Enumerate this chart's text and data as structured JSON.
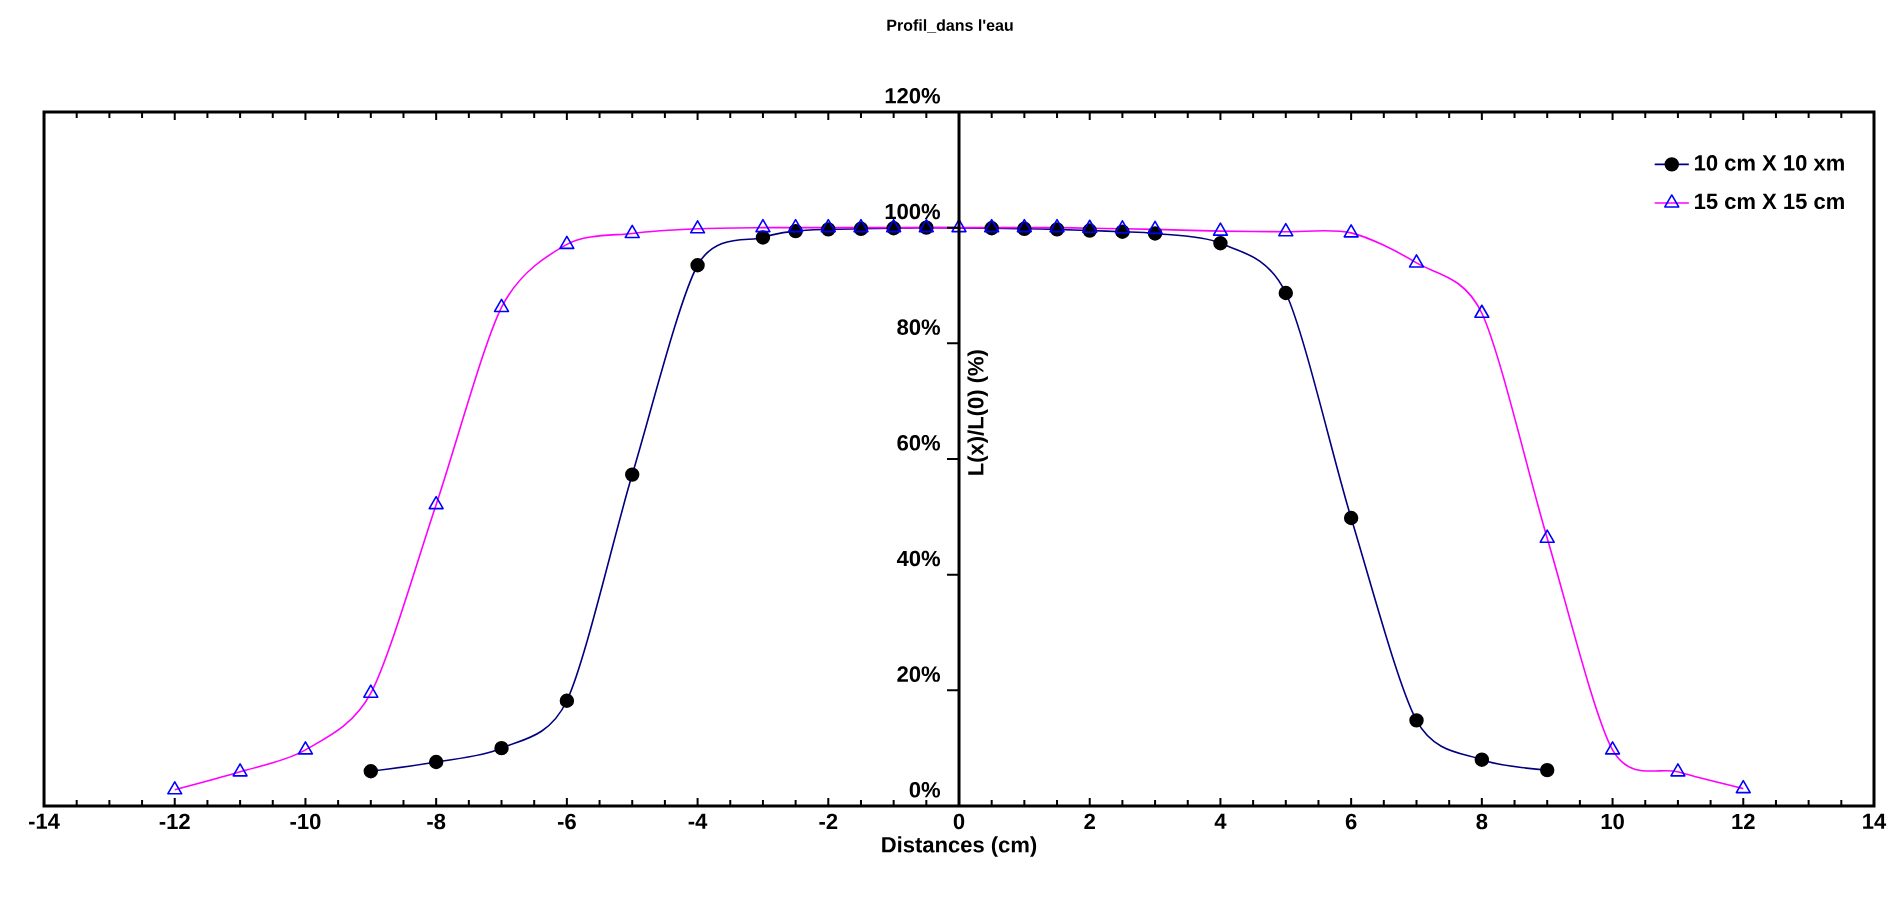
{
  "chart_data": {
    "type": "line",
    "title": "Profil_dans l'eau",
    "xlabel": "Distances  (cm)",
    "ylabel": "L(x)/L(0) (%)",
    "xlim": [
      -14,
      14
    ],
    "xticks": [
      -14,
      -12,
      -10,
      -8,
      -6,
      -4,
      -2,
      0,
      2,
      4,
      6,
      8,
      10,
      12,
      14
    ],
    "ylim": [
      0,
      120
    ],
    "yticks": [
      {
        "value": 0,
        "label": "0%"
      },
      {
        "value": 20,
        "label": "20%"
      },
      {
        "value": 40,
        "label": "40%"
      },
      {
        "value": 60,
        "label": "60%"
      },
      {
        "value": 80,
        "label": "80%"
      },
      {
        "value": 100,
        "label": "100%"
      },
      {
        "value": 120,
        "label": "120%"
      }
    ],
    "legend": "top right",
    "grid": false,
    "series": [
      {
        "name": "10 cm X 10 xm",
        "color": "#000080",
        "marker": "circle",
        "x": [
          -9,
          -8,
          -7,
          -6,
          -5,
          -4,
          -3,
          -2.5,
          -2,
          -1.5,
          -1,
          -0.5,
          0,
          0.5,
          1,
          1.5,
          2,
          2.5,
          3,
          4,
          5,
          6,
          7,
          8,
          9
        ],
        "values": [
          6.0,
          7.6,
          10.0,
          18.2,
          57.3,
          93.5,
          98.3,
          99.4,
          99.7,
          99.8,
          99.9,
          100,
          null,
          99.9,
          99.8,
          99.7,
          99.5,
          99.3,
          99.0,
          97.3,
          88.7,
          49.8,
          14.8,
          8.0,
          6.2
        ]
      },
      {
        "name": "15 cm X 15 cm",
        "color": "#ff00ff",
        "marker": "triangle",
        "x": [
          -12,
          -11,
          -10,
          -9,
          -8,
          -7,
          -6,
          -5,
          -4,
          -3,
          -2.5,
          -2,
          -1.5,
          -1,
          -0.5,
          0,
          0.5,
          1,
          1.5,
          2,
          2.5,
          3,
          4,
          5,
          6,
          7,
          8,
          9,
          10,
          11,
          12
        ],
        "values": [
          2.8,
          5.9,
          9.7,
          19.5,
          52.1,
          86.2,
          97.1,
          99.0,
          99.8,
          100,
          100,
          100,
          100,
          100,
          100,
          100,
          100,
          100,
          100,
          99.9,
          99.8,
          99.7,
          99.4,
          99.3,
          99.1,
          93.9,
          85.2,
          46.3,
          9.7,
          5.9,
          3.0
        ]
      }
    ]
  }
}
